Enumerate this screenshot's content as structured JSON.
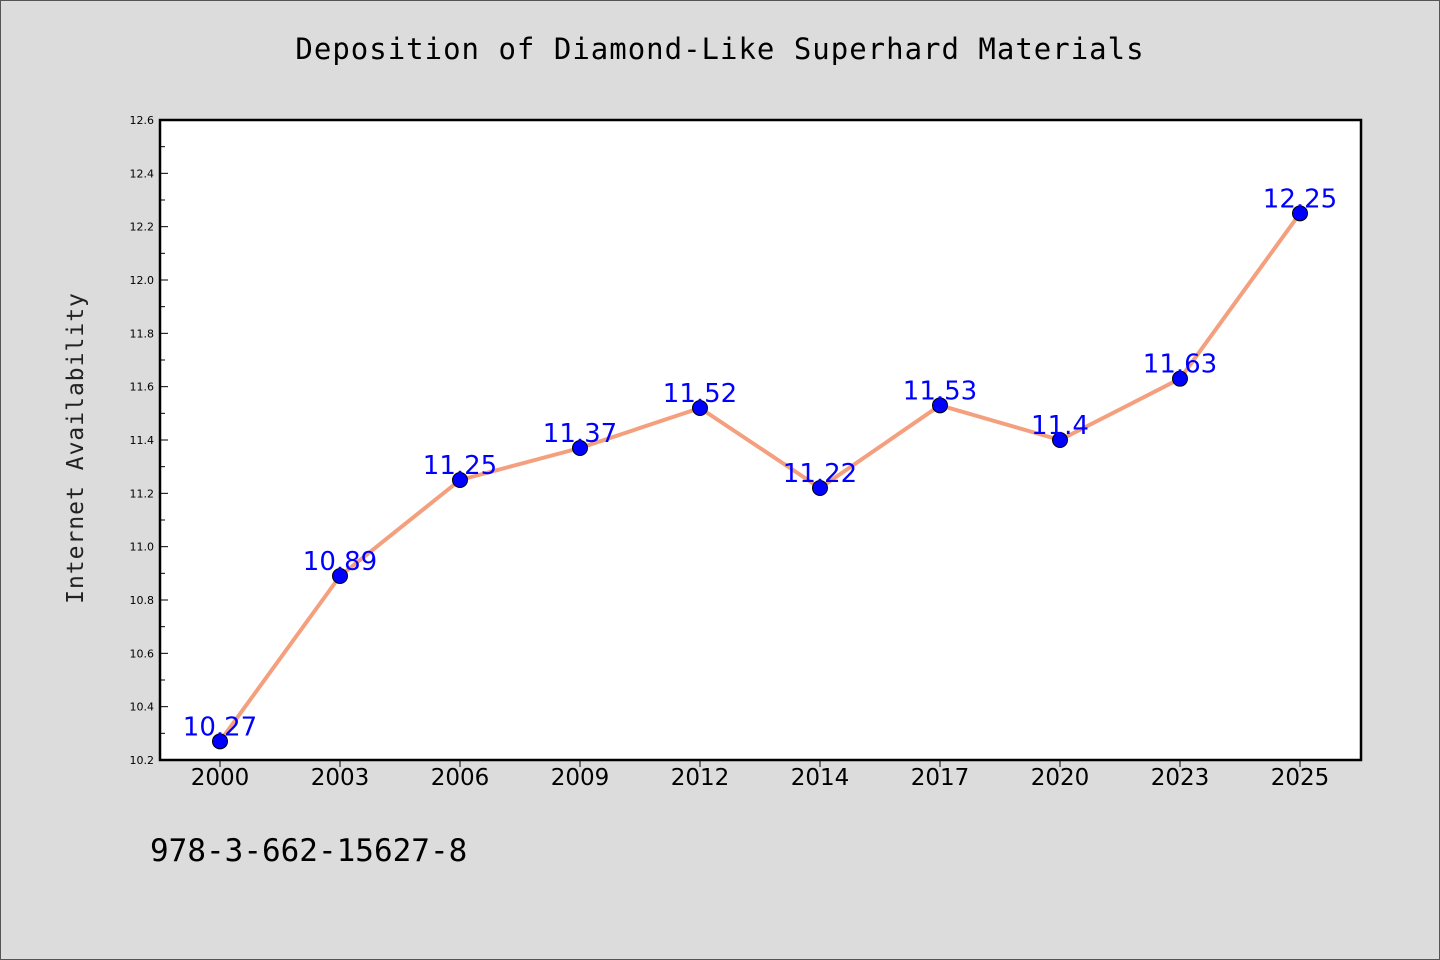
{
  "chart_data": {
    "type": "line",
    "title": "Deposition of Diamond-Like Superhard Materials",
    "xlabel": "",
    "ylabel": "Internet Availability",
    "categories": [
      "2000",
      "2003",
      "2006",
      "2009",
      "2012",
      "2014",
      "2017",
      "2020",
      "2023",
      "2025"
    ],
    "values": [
      10.27,
      10.89,
      11.25,
      11.37,
      11.52,
      11.22,
      11.53,
      11.4,
      11.63,
      12.25
    ],
    "data_labels": [
      "10.27",
      "10.89",
      "11.25",
      "11.37",
      "11.52",
      "11.22",
      "11.53",
      "11.4",
      "11.63",
      "12.25"
    ],
    "ylim": [
      10.2,
      12.6
    ],
    "yticks": [
      "10.2",
      "10.4",
      "10.6",
      "10.8",
      "11.0",
      "11.2",
      "11.4",
      "11.6",
      "11.8",
      "12.0",
      "12.2",
      "12.4",
      "12.6"
    ],
    "grid": false,
    "line_color": "#f4a07e",
    "marker_color": "#0000ff",
    "label_color": "#0000ff"
  },
  "footer": {
    "isbn": "978-3-662-15627-8"
  }
}
